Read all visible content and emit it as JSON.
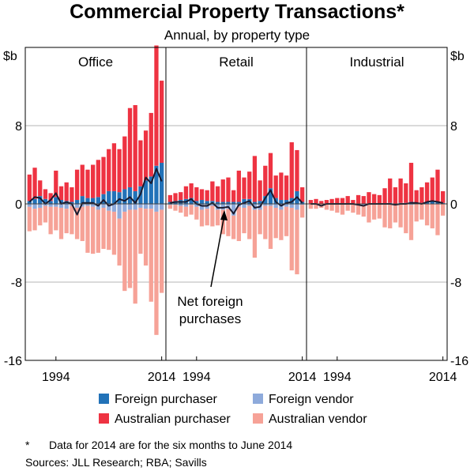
{
  "chart_data": {
    "type": "bar",
    "title": "Commercial Property Transactions*",
    "subtitle": "Annual, by property type",
    "ylabel_left": "$b",
    "ylabel_right": "$b",
    "ylim": [
      -16,
      16
    ],
    "yticks": [
      {
        "value": 8,
        "label": "8"
      },
      {
        "value": 0,
        "label": "0"
      },
      {
        "value": -8,
        "label": "-8"
      },
      {
        "value": -16,
        "label": "-16"
      }
    ],
    "x": [
      1989,
      1990,
      1991,
      1992,
      1993,
      1994,
      1995,
      1996,
      1997,
      1998,
      1999,
      2000,
      2001,
      2002,
      2003,
      2004,
      2005,
      2006,
      2007,
      2008,
      2009,
      2010,
      2011,
      2012,
      2013,
      2014
    ],
    "xtick_labels": [
      "1994",
      "2014"
    ],
    "annotation": "Net foreign purchases",
    "series_order": [
      "Foreign purchaser",
      "Australian purchaser",
      "Foreign vendor",
      "Australian vendor",
      "Net foreign purchases"
    ],
    "panels": [
      {
        "name": "Office",
        "foreign_purchaser": [
          0.3,
          0.5,
          0.8,
          0.5,
          0.3,
          0.7,
          0.4,
          0.3,
          0.2,
          0.4,
          0.8,
          0.6,
          0.6,
          0.7,
          1.0,
          1.3,
          1.3,
          1.2,
          1.5,
          1.7,
          1.3,
          1.8,
          2.4,
          2.8,
          3.9,
          4.2
        ],
        "australian_purchaser": [
          2.7,
          3.2,
          1.6,
          1.0,
          0.8,
          2.7,
          1.4,
          1.9,
          1.5,
          3.1,
          3.2,
          2.9,
          3.4,
          3.8,
          3.8,
          4.3,
          4.9,
          4.4,
          5.4,
          8.1,
          8.8,
          4.7,
          5.1,
          6.5,
          12.3,
          8.4
        ],
        "foreign_vendor": [
          -0.3,
          -0.5,
          -0.4,
          -0.2,
          -0.3,
          -0.3,
          -0.4,
          -0.5,
          -0.2,
          -0.4,
          -0.3,
          -0.2,
          -0.3,
          -0.6,
          -0.4,
          -0.7,
          -0.8,
          -1.5,
          -0.8,
          -0.6,
          -0.6,
          -0.4,
          -0.5,
          -0.5,
          -0.8,
          -0.6
        ],
        "australian_vendor": [
          -2.5,
          -2.2,
          -1.8,
          -1.7,
          -2.8,
          -2.4,
          -3.2,
          -2.5,
          -2.9,
          -3.2,
          -3.5,
          -4.8,
          -4.8,
          -4.4,
          -4.2,
          -4.0,
          -4.4,
          -4.8,
          -8.1,
          -8.0,
          -9.6,
          -4.7,
          -5.8,
          -9.5,
          -12.6,
          -8.5
        ],
        "net_foreign": [
          0.2,
          0.7,
          0.6,
          0.0,
          0.4,
          1.1,
          0.0,
          0.2,
          0.0,
          -1.1,
          0.1,
          0.1,
          0.1,
          -0.2,
          0.4,
          -0.2,
          0.0,
          0.5,
          0.3,
          0.7,
          0.1,
          1.0,
          2.7,
          2.1,
          3.6,
          2.3
        ]
      },
      {
        "name": "Retail",
        "foreign_purchaser": [
          0.2,
          0.3,
          0.4,
          0.5,
          0.6,
          0.3,
          0.4,
          0.3,
          0.3,
          0.2,
          0.2,
          0.2,
          0.2,
          0.2,
          0.5,
          0.5,
          0.2,
          0.3,
          0.8,
          1.6,
          0.6,
          0.4,
          0.4,
          0.6,
          1.3,
          0.2
        ],
        "australian_purchaser": [
          0.7,
          0.8,
          0.8,
          1.3,
          1.5,
          1.4,
          1.1,
          1.1,
          2.0,
          1.6,
          2.3,
          2.5,
          1.2,
          3.2,
          2.2,
          2.8,
          4.7,
          2.1,
          3.1,
          3.6,
          2.3,
          2.8,
          2.5,
          5.7,
          4.2,
          1.5
        ],
        "foreign_vendor": [
          -0.1,
          -0.1,
          -0.2,
          -0.3,
          -0.1,
          -0.3,
          -0.6,
          -0.5,
          -0.2,
          -0.6,
          -0.6,
          -0.5,
          -1.2,
          -0.3,
          -0.4,
          -0.2,
          -0.6,
          -0.6,
          -0.2,
          -0.2,
          -0.4,
          -0.6,
          -0.3,
          -0.4,
          -0.6,
          -0.1
        ],
        "australian_vendor": [
          -0.4,
          -0.6,
          -0.7,
          -1.0,
          -1.0,
          -1.3,
          -1.7,
          -1.7,
          -2.1,
          -1.6,
          -2.5,
          -2.8,
          -2.4,
          -3.5,
          -2.6,
          -3.4,
          -4.9,
          -2.5,
          -3.4,
          -4.4,
          -3.1,
          -3.1,
          -3.0,
          -6.4,
          -6.6,
          -1.3
        ],
        "net_foreign": [
          0.1,
          0.2,
          0.2,
          0.2,
          0.5,
          0.0,
          -0.2,
          -0.2,
          0.1,
          -0.4,
          -0.4,
          -0.3,
          -1.0,
          -0.1,
          0.1,
          0.3,
          -0.4,
          -0.3,
          0.6,
          1.4,
          0.2,
          -0.2,
          0.1,
          0.2,
          0.7,
          0.1
        ]
      },
      {
        "name": "Industrial",
        "foreign_purchaser": [
          0.0,
          0.0,
          0.0,
          0.0,
          0.0,
          0.0,
          0.0,
          0.0,
          0.0,
          0.0,
          0.0,
          0.0,
          0.0,
          0.0,
          0.0,
          0.1,
          0.0,
          0.1,
          0.1,
          0.2,
          0.1,
          0.1,
          0.2,
          0.3,
          0.2,
          0.1
        ],
        "australian_purchaser": [
          0.4,
          0.5,
          0.3,
          0.4,
          0.5,
          0.6,
          0.6,
          0.8,
          0.4,
          0.9,
          0.8,
          1.2,
          1.0,
          0.9,
          1.6,
          2.5,
          1.7,
          2.5,
          2.0,
          4.0,
          1.3,
          1.6,
          2.0,
          2.4,
          3.3,
          1.2
        ],
        "foreign_vendor": [
          0.0,
          0.0,
          0.0,
          0.0,
          0.0,
          0.0,
          0.0,
          0.0,
          0.0,
          0.0,
          -0.1,
          0.0,
          0.0,
          0.0,
          0.0,
          0.0,
          -0.1,
          0.0,
          0.0,
          -0.1,
          0.0,
          0.0,
          0.0,
          0.0,
          0.0,
          0.0
        ],
        "australian_vendor": [
          -0.5,
          -0.5,
          -0.4,
          -0.6,
          -0.7,
          -0.9,
          -1.1,
          -0.7,
          -0.9,
          -1.1,
          -1.2,
          -1.9,
          -1.6,
          -1.5,
          -2.4,
          -2.5,
          -1.8,
          -2.4,
          -3.0,
          -3.6,
          -1.8,
          -1.6,
          -2.2,
          -2.5,
          -3.2,
          -1.2
        ],
        "net_foreign": [
          0.0,
          0.0,
          -0.2,
          0.0,
          0.0,
          0.0,
          0.0,
          0.0,
          0.0,
          -0.1,
          -0.2,
          0.0,
          0.0,
          0.0,
          0.0,
          0.0,
          -0.1,
          0.0,
          0.0,
          0.1,
          0.1,
          0.0,
          0.2,
          0.3,
          0.2,
          0.1
        ]
      }
    ]
  },
  "legend": {
    "items": [
      {
        "key": "foreign_purchaser",
        "label": "Foreign purchaser",
        "color": "#2272b8"
      },
      {
        "key": "foreign_vendor",
        "label": "Foreign vendor",
        "color": "#8eaadb"
      },
      {
        "key": "australian_purchaser",
        "label": "Australian purchaser",
        "color": "#ee3342"
      },
      {
        "key": "australian_vendor",
        "label": "Australian vendor",
        "color": "#f6a297"
      }
    ]
  },
  "colors": {
    "foreign_purchaser": "#2272b8",
    "foreign_vendor": "#8eaadb",
    "australian_purchaser": "#ee3342",
    "australian_vendor": "#f6a297",
    "net_line": "#1a1a2e",
    "grid": "#b5b5b5"
  },
  "footnote": {
    "marker": "*",
    "text": "Data for 2014 are for the six months to June 2014"
  },
  "sources": "Sources:  JLL Research; RBA; Savills"
}
